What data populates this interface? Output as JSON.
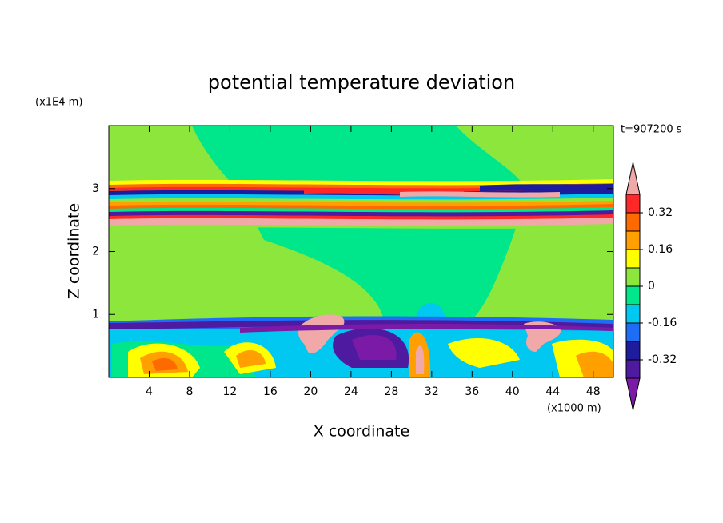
{
  "chart_data": {
    "type": "contour",
    "title": "potential temperature deviation",
    "xlabel": "X coordinate",
    "ylabel": "Z coordinate",
    "xunit": "(x1000 m)",
    "yunit": "(x1E4 m)",
    "annotation": "t=907200 s",
    "xlim": [
      0,
      50
    ],
    "xticks": [
      4,
      8,
      12,
      16,
      20,
      24,
      28,
      32,
      36,
      40,
      44,
      48
    ],
    "ylim": [
      0,
      4
    ],
    "yticks": [
      1,
      2,
      3
    ],
    "colorbar": {
      "levels": [
        -0.4,
        -0.32,
        -0.24,
        -0.16,
        -0.08,
        0,
        0.08,
        0.16,
        0.24,
        0.32,
        0.4
      ],
      "colors": [
        "#7a1aa6",
        "#4e1aa0",
        "#1c1c9c",
        "#1e6ef5",
        "#00c8f0",
        "#00e68a",
        "#8ce63c",
        "#ffff00",
        "#ffa000",
        "#ff6a00",
        "#ff2828",
        "#f0a8a8"
      ],
      "ticks": [
        -0.32,
        -0.16,
        0,
        0.16,
        0.32
      ]
    }
  }
}
